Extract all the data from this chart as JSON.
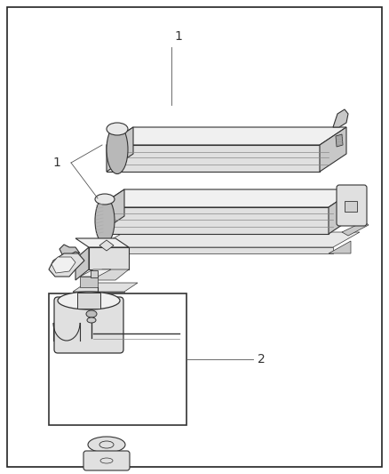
{
  "bg": "#ffffff",
  "lc": "#333333",
  "lc_thin": "#555555",
  "fc_light": "#f0f0f0",
  "fc_mid": "#e0e0e0",
  "fc_dark": "#c8c8c8",
  "fc_darker": "#b8b8b8",
  "label_color": "#555555",
  "lw_main": 0.8,
  "lw_thin": 0.5,
  "fig_w": 4.38,
  "fig_h": 5.33
}
